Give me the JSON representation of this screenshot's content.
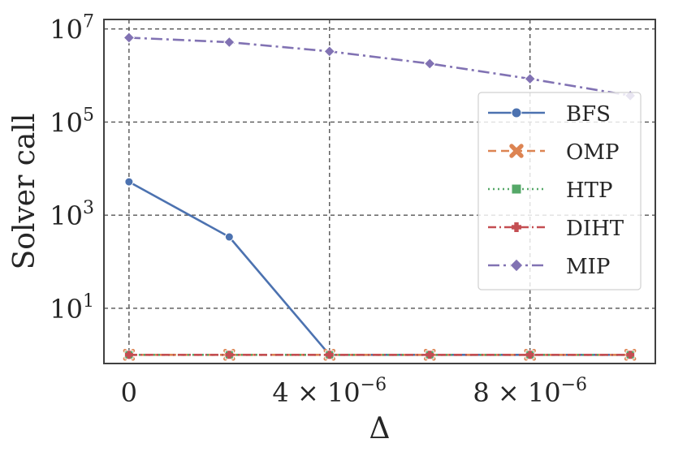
{
  "chart_data": {
    "type": "line",
    "xlabel": "Δ",
    "ylabel": "Solver call",
    "yscale": "log",
    "x": [
      0,
      2e-06,
      4e-06,
      6e-06,
      8e-06,
      1e-05
    ],
    "xlim": [
      -5e-07,
      1.05e-05
    ],
    "ylim": [
      0.65,
      16000000
    ],
    "x_ticks": [
      {
        "value": 0,
        "label": "0",
        "exp": ""
      },
      {
        "value": 4e-06,
        "label": "4 × 10",
        "exp": "−6"
      },
      {
        "value": 8e-06,
        "label": "8 × 10",
        "exp": "−6"
      }
    ],
    "y_ticks": [
      {
        "value": 10,
        "label": "10",
        "exp": "1"
      },
      {
        "value": 1000,
        "label": "10",
        "exp": "3"
      },
      {
        "value": 100000,
        "label": "10",
        "exp": "5"
      },
      {
        "value": 10000000,
        "label": "10",
        "exp": "7"
      }
    ],
    "grid": true,
    "legend_position": "right",
    "series": [
      {
        "name": "BFS",
        "color": "#4c72b0",
        "dash": "",
        "marker": "circle",
        "values": [
          5200,
          340,
          1,
          1,
          1,
          1
        ]
      },
      {
        "name": "OMP",
        "color": "#dd8452",
        "dash": "10 6",
        "marker": "x",
        "values": [
          1,
          1,
          1,
          1,
          1,
          1
        ]
      },
      {
        "name": "HTP",
        "color": "#55a868",
        "dash": "2 4",
        "marker": "square",
        "values": [
          1,
          1,
          1,
          1,
          1,
          1
        ]
      },
      {
        "name": "DIHT",
        "color": "#c44e52",
        "dash": "10 4 2 4",
        "marker": "plus",
        "values": [
          1,
          1,
          1,
          1,
          1,
          1
        ]
      },
      {
        "name": "MIP",
        "color": "#8172b3",
        "dash": "14 5 3 5",
        "marker": "diamond",
        "values": [
          6500000,
          5200000,
          3300000,
          1800000,
          850000,
          370000
        ]
      }
    ]
  }
}
